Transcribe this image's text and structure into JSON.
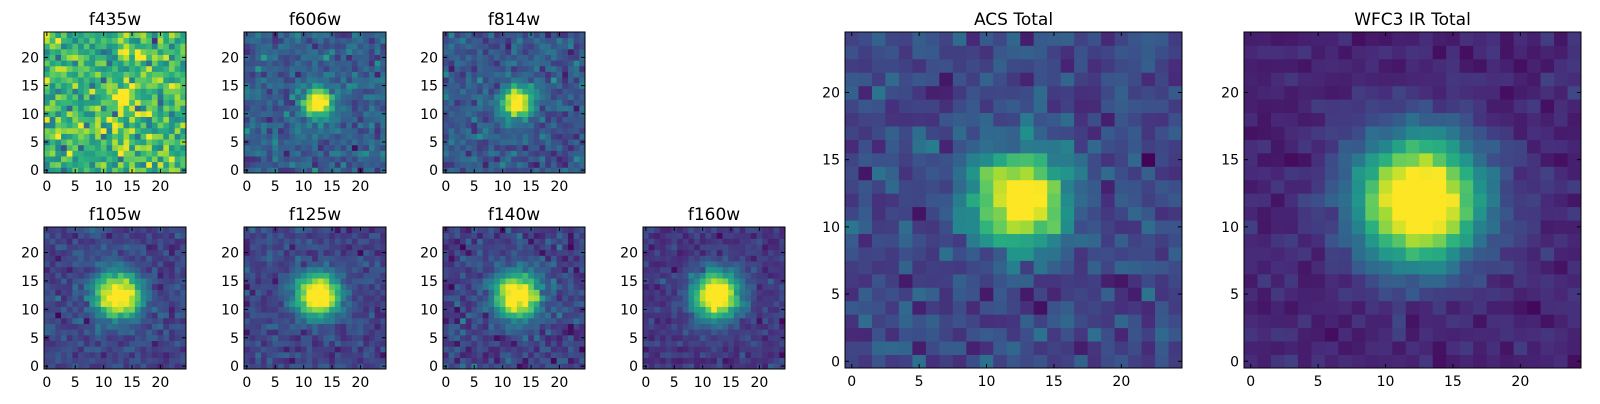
{
  "colormap": [
    "#440154",
    "#472d7b",
    "#3b528b",
    "#2c728e",
    "#21918c",
    "#28ae80",
    "#5ec962",
    "#addc30",
    "#fde725"
  ],
  "chart_data": [
    {
      "type": "heatmap",
      "title": "f435w",
      "grid_size": [
        25,
        25
      ],
      "xlim": [
        -0.5,
        24.5
      ],
      "ylim": [
        -0.5,
        24.5
      ],
      "xticks": [
        0,
        5,
        10,
        15,
        20
      ],
      "yticks": [
        0,
        5,
        10,
        15,
        20
      ],
      "model": {
        "center": [
          13.5,
          13
        ],
        "sigma": 1.4,
        "peak": 0.35,
        "background": 0.66,
        "noise": 0.15,
        "seed": 11
      }
    },
    {
      "type": "heatmap",
      "title": "f606w",
      "grid_size": [
        25,
        25
      ],
      "xlim": [
        -0.5,
        24.5
      ],
      "ylim": [
        -0.5,
        24.5
      ],
      "xticks": [
        0,
        5,
        10,
        15,
        20
      ],
      "yticks": [
        0,
        5,
        10,
        15,
        20
      ],
      "model": {
        "center": [
          12.5,
          12
        ],
        "sigma": 1.7,
        "peak": 0.75,
        "background": 0.3,
        "noise": 0.08,
        "seed": 22
      }
    },
    {
      "type": "heatmap",
      "title": "f814w",
      "grid_size": [
        25,
        25
      ],
      "xlim": [
        -0.5,
        24.5
      ],
      "ylim": [
        -0.5,
        24.5
      ],
      "xticks": [
        0,
        5,
        10,
        15,
        20
      ],
      "yticks": [
        0,
        5,
        10,
        15,
        20
      ],
      "model": {
        "center": [
          12.5,
          12
        ],
        "sigma": 1.9,
        "peak": 0.75,
        "background": 0.27,
        "noise": 0.08,
        "seed": 33
      }
    },
    {
      "type": "heatmap",
      "title": "f105w",
      "grid_size": [
        25,
        25
      ],
      "xlim": [
        -0.5,
        24.5
      ],
      "ylim": [
        -0.5,
        24.5
      ],
      "xticks": [
        0,
        5,
        10,
        15,
        20
      ],
      "yticks": [
        0,
        5,
        10,
        15,
        20
      ],
      "model": {
        "center": [
          12.5,
          12.5
        ],
        "sigma": 2.8,
        "peak": 0.8,
        "background": 0.2,
        "noise": 0.06,
        "seed": 44
      }
    },
    {
      "type": "heatmap",
      "title": "f125w",
      "grid_size": [
        25,
        25
      ],
      "xlim": [
        -0.5,
        24.5
      ],
      "ylim": [
        -0.5,
        24.5
      ],
      "xticks": [
        0,
        5,
        10,
        15,
        20
      ],
      "yticks": [
        0,
        5,
        10,
        15,
        20
      ],
      "model": {
        "center": [
          12.5,
          12.5
        ],
        "sigma": 2.7,
        "peak": 0.8,
        "background": 0.2,
        "noise": 0.06,
        "seed": 55
      }
    },
    {
      "type": "heatmap",
      "title": "f140w",
      "grid_size": [
        25,
        25
      ],
      "xlim": [
        -0.5,
        24.5
      ],
      "ylim": [
        -0.5,
        24.5
      ],
      "xticks": [
        0,
        5,
        10,
        15,
        20
      ],
      "yticks": [
        0,
        5,
        10,
        15,
        20
      ],
      "model": {
        "center": [
          12.5,
          12.5
        ],
        "sigma": 2.8,
        "peak": 0.8,
        "background": 0.2,
        "noise": 0.07,
        "seed": 66
      }
    },
    {
      "type": "heatmap",
      "title": "f160w",
      "grid_size": [
        25,
        25
      ],
      "xlim": [
        -0.5,
        24.5
      ],
      "ylim": [
        -0.5,
        24.5
      ],
      "xticks": [
        0,
        5,
        10,
        15,
        20
      ],
      "yticks": [
        0,
        5,
        10,
        15,
        20
      ],
      "model": {
        "center": [
          12.5,
          12.5
        ],
        "sigma": 2.9,
        "peak": 0.82,
        "background": 0.16,
        "noise": 0.05,
        "seed": 77
      }
    },
    {
      "type": "heatmap",
      "title": "ACS Total",
      "grid_size": [
        25,
        25
      ],
      "xlim": [
        -0.5,
        24.5
      ],
      "ylim": [
        -0.5,
        24.5
      ],
      "xticks": [
        0,
        5,
        10,
        15,
        20
      ],
      "yticks": [
        0,
        5,
        10,
        15,
        20
      ],
      "model": {
        "center": [
          12.5,
          12
        ],
        "sigma": 2.3,
        "peak": 0.8,
        "background": 0.22,
        "noise": 0.07,
        "seed": 88
      }
    },
    {
      "type": "heatmap",
      "title": "WFC3 IR Total",
      "grid_size": [
        25,
        25
      ],
      "xlim": [
        -0.5,
        24.5
      ],
      "ylim": [
        -0.5,
        24.5
      ],
      "xticks": [
        0,
        5,
        10,
        15,
        20
      ],
      "yticks": [
        0,
        5,
        10,
        15,
        20
      ],
      "model": {
        "center": [
          12.5,
          12
        ],
        "sigma": 3.3,
        "peak": 0.9,
        "background": 0.1,
        "noise": 0.035,
        "seed": 99
      }
    }
  ]
}
